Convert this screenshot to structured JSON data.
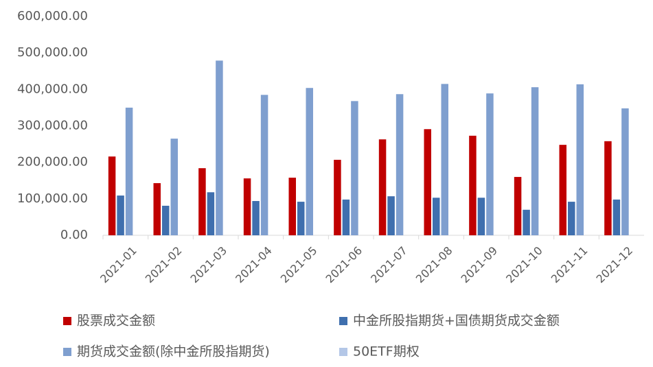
{
  "chart_data": {
    "type": "bar",
    "categories": [
      "2021-01",
      "2021-02",
      "2021-03",
      "2021-04",
      "2021-05",
      "2021-06",
      "2021-07",
      "2021-08",
      "2021-09",
      "2021-10",
      "2021-11",
      "2021-12"
    ],
    "series": [
      {
        "name": "股票成交金额",
        "color": "#c00000",
        "values": [
          216000,
          143000,
          184000,
          156000,
          158000,
          207000,
          263000,
          291000,
          273000,
          160000,
          248000,
          258000
        ]
      },
      {
        "name": "中金所股指期货+国债期货成交金额",
        "color": "#3f6fae",
        "values": [
          109000,
          81000,
          118000,
          94000,
          92000,
          98000,
          107000,
          103000,
          103000,
          70000,
          92000,
          98000
        ]
      },
      {
        "name": "期货成交金额(除中金所股指期货)",
        "color": "#7f9fcf",
        "values": [
          350000,
          265000,
          479000,
          385000,
          404000,
          368000,
          387000,
          415000,
          389000,
          406000,
          414000,
          348000
        ]
      },
      {
        "name": "50ETF期权",
        "color": "#b4c7e7",
        "values": [
          null,
          null,
          null,
          null,
          null,
          null,
          null,
          null,
          null,
          null,
          null,
          null
        ]
      }
    ],
    "ylim": [
      0,
      600000
    ],
    "yticks": [
      {
        "value": 0,
        "label": "0.00"
      },
      {
        "value": 100000,
        "label": "100,000.00"
      },
      {
        "value": 200000,
        "label": "200,000.00"
      },
      {
        "value": 300000,
        "label": "300,000.00"
      },
      {
        "value": 400000,
        "label": "400,000.00"
      },
      {
        "value": 500000,
        "label": "500,000.00"
      },
      {
        "value": 600000,
        "label": "600,000.00"
      }
    ],
    "grid": false
  }
}
